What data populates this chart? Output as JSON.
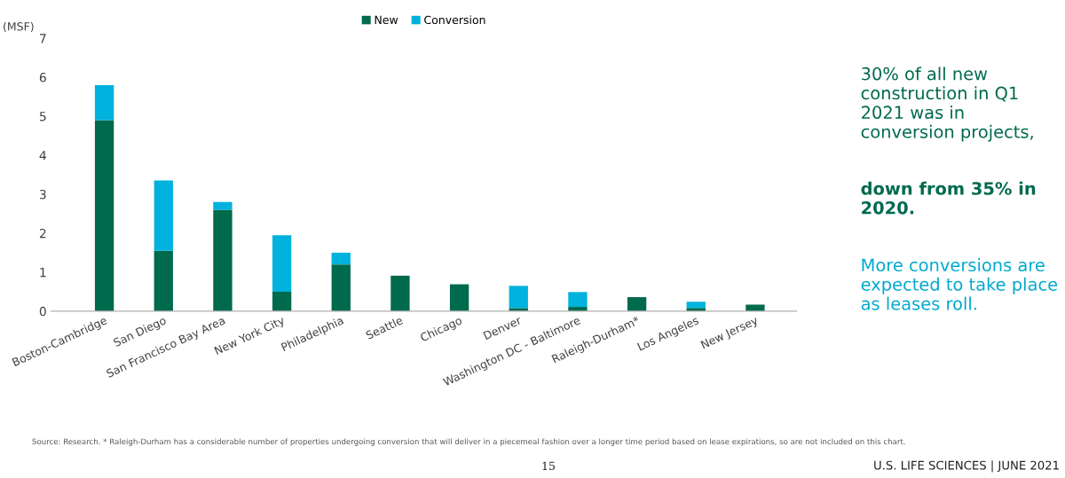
{
  "chart_data": {
    "type": "bar",
    "stacked": true,
    "ylabel": "(MSF)",
    "categories": [
      "Boston-Cambridge",
      "San Diego",
      "San Francisco Bay Area",
      "New York City",
      "Philadelphia",
      "Seattle",
      "Chicago",
      "Denver",
      "Washington DC - Baltimore",
      "Raleigh-Durham*",
      "Los Angeles",
      "New Jersey"
    ],
    "series": [
      {
        "name": "New",
        "color": "#006a4d",
        "values": [
          4.9,
          1.55,
          2.6,
          0.5,
          1.2,
          0.91,
          0.69,
          0.08,
          0.11,
          0.36,
          0.08,
          0.17
        ]
      },
      {
        "name": "Conversion",
        "color": "#00b2dd",
        "values": [
          0.9,
          1.8,
          0.2,
          1.45,
          0.3,
          null,
          null,
          0.57,
          0.38,
          null,
          0.16,
          null
        ]
      }
    ],
    "ylim": [
      0,
      7
    ],
    "yticks": [
      0,
      1,
      2,
      3,
      4,
      5,
      6,
      7
    ],
    "grid": false,
    "legend": "top",
    "annotations": [
      "30% of all new construction in Q1 2021 was in conversion projects,",
      "down from 35% in 2020.",
      "More conversions are expected to take place as leases roll.",
      "Source: Research. * Raleigh-Durham has a considerable number of properties undergoing conversion that will deliver in a piecemeal fashion over a longer time period based on lease expirations, so are not included on this chart.",
      "15",
      "U.S. LIFE SCIENCES | JUNE 2021"
    ]
  }
}
